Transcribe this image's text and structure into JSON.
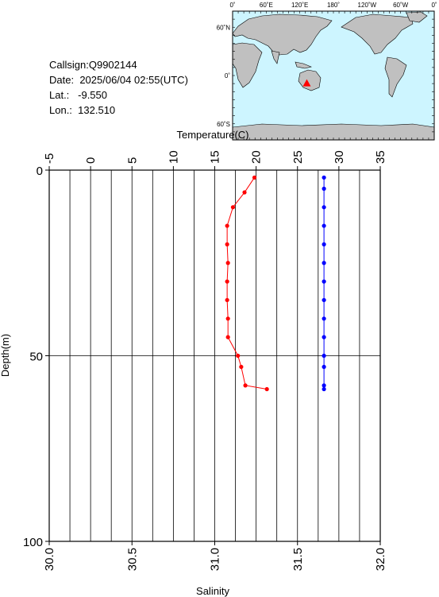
{
  "info": {
    "callsign": "Callsign:Q9902144",
    "date_label": "Date:",
    "date_value": "2025/06/04 02:55(UTC)",
    "lat_label": "Lat.:",
    "lat_value": "-9.550",
    "lon_label": "Lon.:",
    "lon_value": "132.510"
  },
  "map": {
    "top_ticks": [
      "0˚",
      "60˚E",
      "120˚E",
      "180˚",
      "120˚W",
      "60˚W",
      "0˚"
    ],
    "left_ticks": [
      "60˚N",
      "0˚",
      "60˚S"
    ],
    "ocean_color": "#cdf5ff",
    "land_color": "#c0c0c0",
    "marker_color": "#ff0000",
    "float_position": {
      "lon": 132.51,
      "lat": -9.55
    }
  },
  "chart_data": {
    "type": "line",
    "top_axis": {
      "label": "Temperature(C)",
      "range": [
        -5,
        35
      ],
      "ticks": [
        "-5",
        "0",
        "5",
        "10",
        "15",
        "20",
        "25",
        "30",
        "35"
      ]
    },
    "bottom_axis": {
      "label": "Salinity",
      "range": [
        30.0,
        32.0
      ],
      "ticks": [
        "30.0",
        "30.5",
        "31.0",
        "31.5",
        "32.0"
      ]
    },
    "y_axis": {
      "label": "Depth(m)",
      "range": [
        0,
        100
      ],
      "inverted": true,
      "ticks": [
        "0",
        "50",
        "100"
      ]
    },
    "grid": true,
    "series": [
      {
        "axis": "top",
        "color": "#ff0000",
        "points": [
          [
            19.8,
            2
          ],
          [
            18.6,
            6
          ],
          [
            17.2,
            10
          ],
          [
            16.5,
            15
          ],
          [
            16.5,
            20
          ],
          [
            16.6,
            25
          ],
          [
            16.5,
            30
          ],
          [
            16.5,
            35
          ],
          [
            16.6,
            40
          ],
          [
            16.6,
            45
          ],
          [
            17.8,
            50
          ],
          [
            18.2,
            53
          ],
          [
            18.7,
            58
          ],
          [
            21.3,
            59
          ]
        ]
      },
      {
        "axis": "bottom",
        "color": "#0000ff",
        "points": [
          [
            31.66,
            2
          ],
          [
            31.66,
            5
          ],
          [
            31.66,
            10
          ],
          [
            31.66,
            15
          ],
          [
            31.66,
            20
          ],
          [
            31.66,
            25
          ],
          [
            31.66,
            30
          ],
          [
            31.66,
            35
          ],
          [
            31.66,
            40
          ],
          [
            31.66,
            45
          ],
          [
            31.66,
            50
          ],
          [
            31.66,
            53
          ],
          [
            31.66,
            58
          ],
          [
            31.66,
            59
          ]
        ]
      }
    ]
  }
}
